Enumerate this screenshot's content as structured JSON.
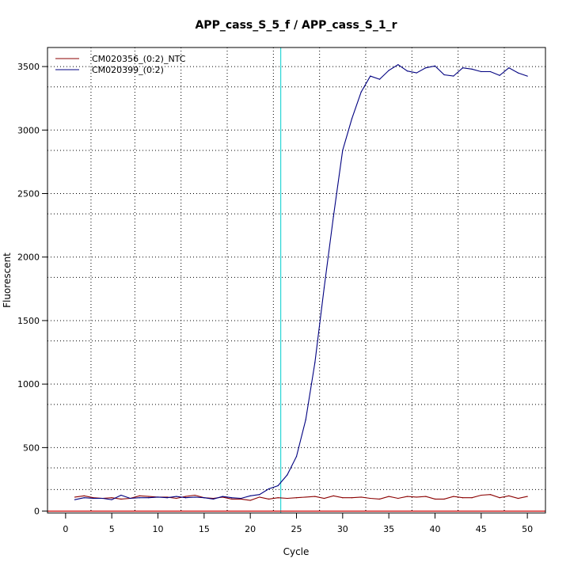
{
  "chart_data": {
    "type": "line",
    "title": "APP_cass_S_5_f / APP_cass_S_1_r",
    "xlabel": "Cycle",
    "ylabel": "Fluorescent",
    "xlim": [
      -1.96,
      51.96
    ],
    "ylim": [
      -15,
      3650
    ],
    "xticks": [
      0,
      5,
      10,
      15,
      20,
      25,
      30,
      35,
      40,
      45,
      50
    ],
    "yticks": [
      0,
      500,
      1000,
      1500,
      2000,
      2500,
      3000,
      3500
    ],
    "grid_x": [
      2.75,
      7.5,
      12.5,
      17.5,
      22.5,
      27.5,
      32.5,
      37.5,
      42.5,
      47.5
    ],
    "grid_y": [
      170,
      340,
      500,
      840,
      1000,
      1340,
      1500,
      1840,
      2000,
      2340,
      2500,
      2840,
      3000,
      3340,
      3500
    ],
    "grid": true,
    "grid_style": "dotted",
    "threshold_cycle": 23.3,
    "baseline": 0,
    "legend_position": "top-left",
    "series": [
      {
        "name": "CM020356_(0:2)_NTC",
        "color": "#8B0000",
        "x": [
          1,
          2,
          3,
          4,
          5,
          6,
          7,
          8,
          9,
          10,
          11,
          12,
          13,
          14,
          15,
          16,
          17,
          18,
          19,
          20,
          21,
          22,
          23,
          24,
          25,
          26,
          27,
          28,
          29,
          30,
          31,
          32,
          33,
          34,
          35,
          36,
          37,
          38,
          39,
          40,
          41,
          42,
          43,
          44,
          45,
          46,
          47,
          48,
          49,
          50
        ],
        "values": [
          110,
          120,
          105,
          100,
          105,
          95,
          100,
          120,
          115,
          110,
          110,
          100,
          115,
          125,
          105,
          100,
          110,
          95,
          95,
          85,
          110,
          95,
          105,
          100,
          105,
          110,
          115,
          100,
          120,
          105,
          105,
          110,
          100,
          95,
          115,
          100,
          115,
          110,
          115,
          95,
          95,
          115,
          105,
          105,
          125,
          130,
          105,
          120,
          100,
          115
        ]
      },
      {
        "name": "CM020399_(0:2)",
        "color": "#000080",
        "x": [
          1,
          2,
          3,
          4,
          5,
          6,
          7,
          8,
          9,
          10,
          11,
          12,
          13,
          14,
          15,
          16,
          17,
          18,
          19,
          20,
          21,
          22,
          23,
          24,
          25,
          26,
          27,
          28,
          29,
          30,
          31,
          32,
          33,
          34,
          35,
          36,
          37,
          38,
          39,
          40,
          41,
          42,
          43,
          44,
          45,
          46,
          47,
          48,
          49,
          50
        ],
        "values": [
          90,
          105,
          100,
          100,
          90,
          125,
          100,
          105,
          105,
          110,
          105,
          115,
          105,
          110,
          105,
          95,
          115,
          105,
          100,
          120,
          130,
          175,
          200,
          285,
          430,
          720,
          1170,
          1760,
          2320,
          2840,
          3090,
          3300,
          3425,
          3400,
          3470,
          3515,
          3465,
          3450,
          3490,
          3505,
          3435,
          3425,
          3490,
          3480,
          3460,
          3460,
          3430,
          3490,
          3450,
          3425
        ]
      }
    ]
  }
}
